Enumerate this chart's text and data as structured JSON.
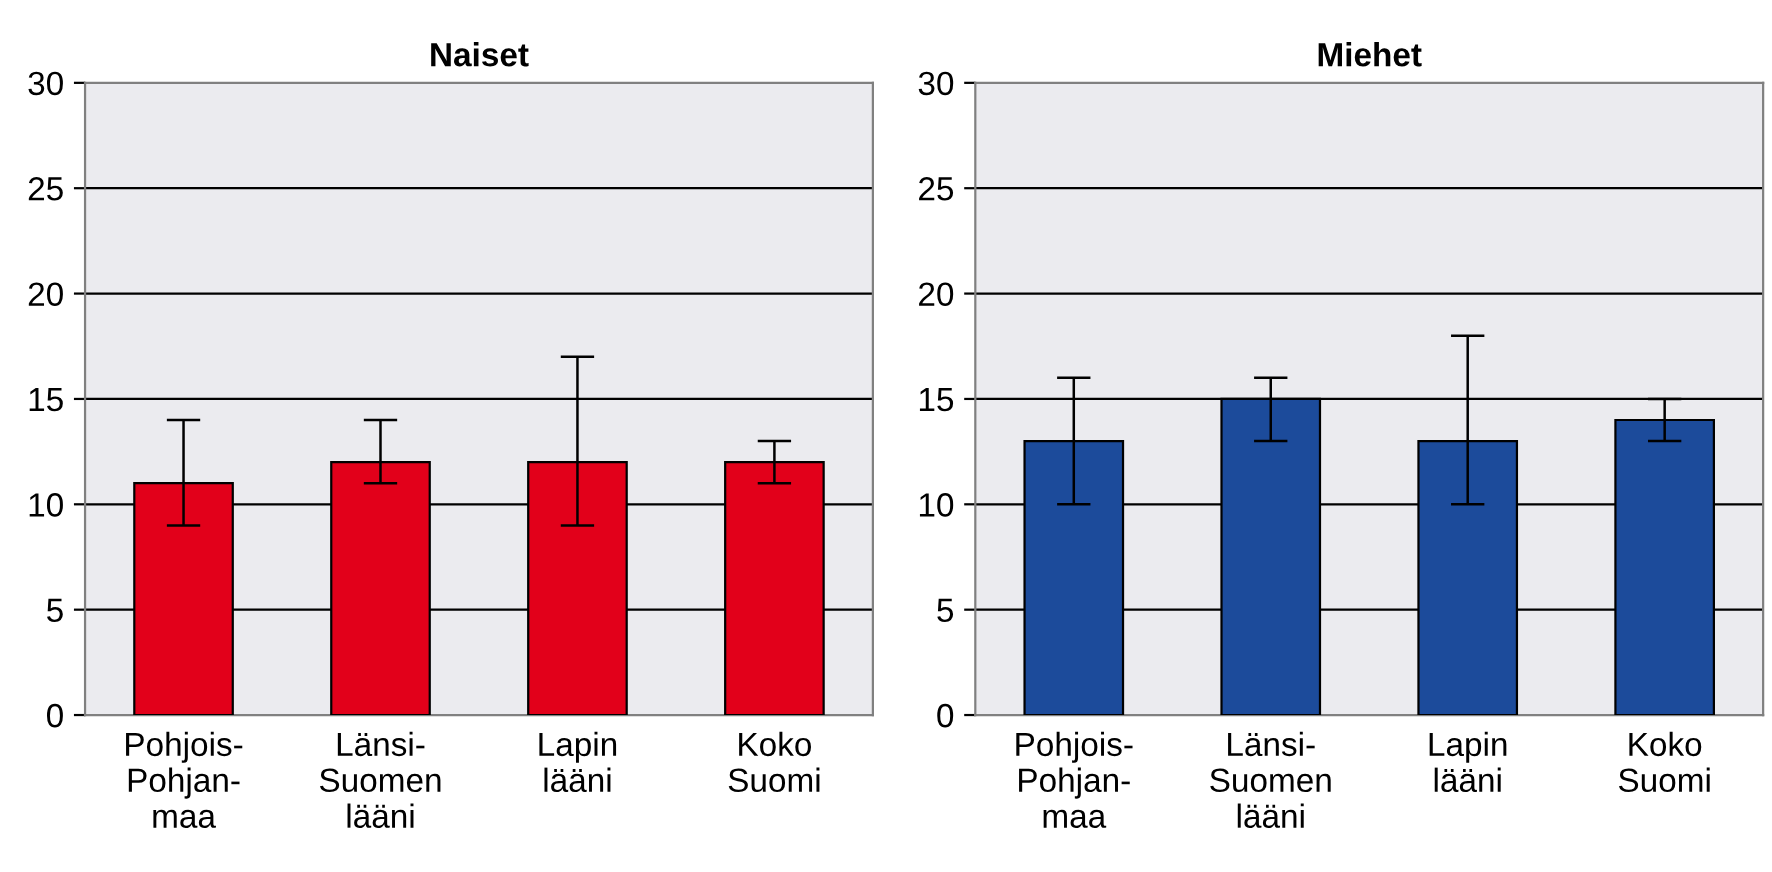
{
  "chart_data": [
    {
      "type": "bar",
      "title": "Naiset",
      "categories": [
        "Pohjois-\nPohjan-\nmaa",
        "Länsi-\nSuomen\nlääni",
        "Lapin\nlääni",
        "Koko\nSuomi"
      ],
      "values": [
        11,
        12,
        12,
        12
      ],
      "errors": [
        [
          9,
          14
        ],
        [
          11,
          14
        ],
        [
          9,
          17
        ],
        [
          11,
          13
        ]
      ],
      "color": "#e2001a",
      "ylim": [
        0,
        30
      ],
      "yticks": [
        0,
        5,
        10,
        15,
        20,
        25,
        30
      ],
      "grid": "y"
    },
    {
      "type": "bar",
      "title": "Miehet",
      "categories": [
        "Pohjois-\nPohjan-\nmaa",
        "Länsi-\nSuomen\nlääni",
        "Lapin\nlääni",
        "Koko\nSuomi"
      ],
      "values": [
        13,
        15,
        13,
        14
      ],
      "errors": [
        [
          10,
          16
        ],
        [
          13,
          16
        ],
        [
          10,
          18
        ],
        [
          13,
          15
        ]
      ],
      "color": "#1c4b9b",
      "ylim": [
        0,
        30
      ],
      "yticks": [
        0,
        5,
        10,
        15,
        20,
        25,
        30
      ],
      "grid": "y"
    }
  ]
}
